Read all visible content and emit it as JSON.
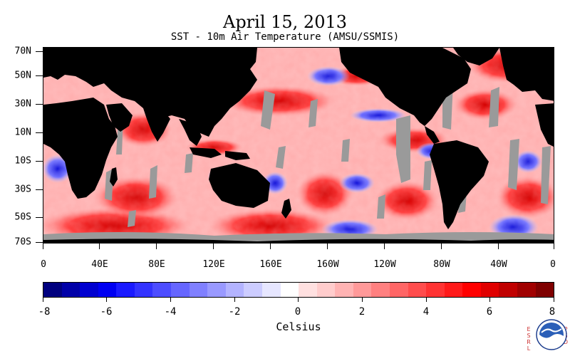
{
  "title": "April 15, 2013",
  "subtitle": "SST - 10m Air Temperature (AMSU/SSMIS)",
  "latitude_labels": [
    "70N",
    "50N",
    "30N",
    "10N",
    "10S",
    "30S",
    "50S",
    "70S"
  ],
  "longitude_labels": [
    "0",
    "40E",
    "80E",
    "120E",
    "160E",
    "160W",
    "120W",
    "80W",
    "40W",
    "0"
  ],
  "colorbar": {
    "labels": [
      "-8",
      "-6",
      "-4",
      "-2",
      "0",
      "2",
      "4",
      "6",
      "8"
    ],
    "unit": "Celsius",
    "colors": [
      "#00007f",
      "#0000a8",
      "#0000d0",
      "#0000f2",
      "#1a1aff",
      "#3333ff",
      "#4d4dff",
      "#6666ff",
      "#8080ff",
      "#9999ff",
      "#b3b3ff",
      "#ccccff",
      "#e6e6ff",
      "#ffffff",
      "#ffe0e0",
      "#ffcccc",
      "#ffb3b3",
      "#ff9999",
      "#ff8080",
      "#ff6666",
      "#ff4d4d",
      "#ff3333",
      "#ff1a1a",
      "#ff0000",
      "#e00000",
      "#c00000",
      "#a00000",
      "#7f0000"
    ]
  },
  "colors": {
    "land": "#000000",
    "ice_missing": "#999999",
    "warm": "#ff0000",
    "cool": "#0000ff"
  },
  "logo": {
    "name": "NOAA",
    "left_text": "ESRL",
    "right_text": "PSD"
  }
}
